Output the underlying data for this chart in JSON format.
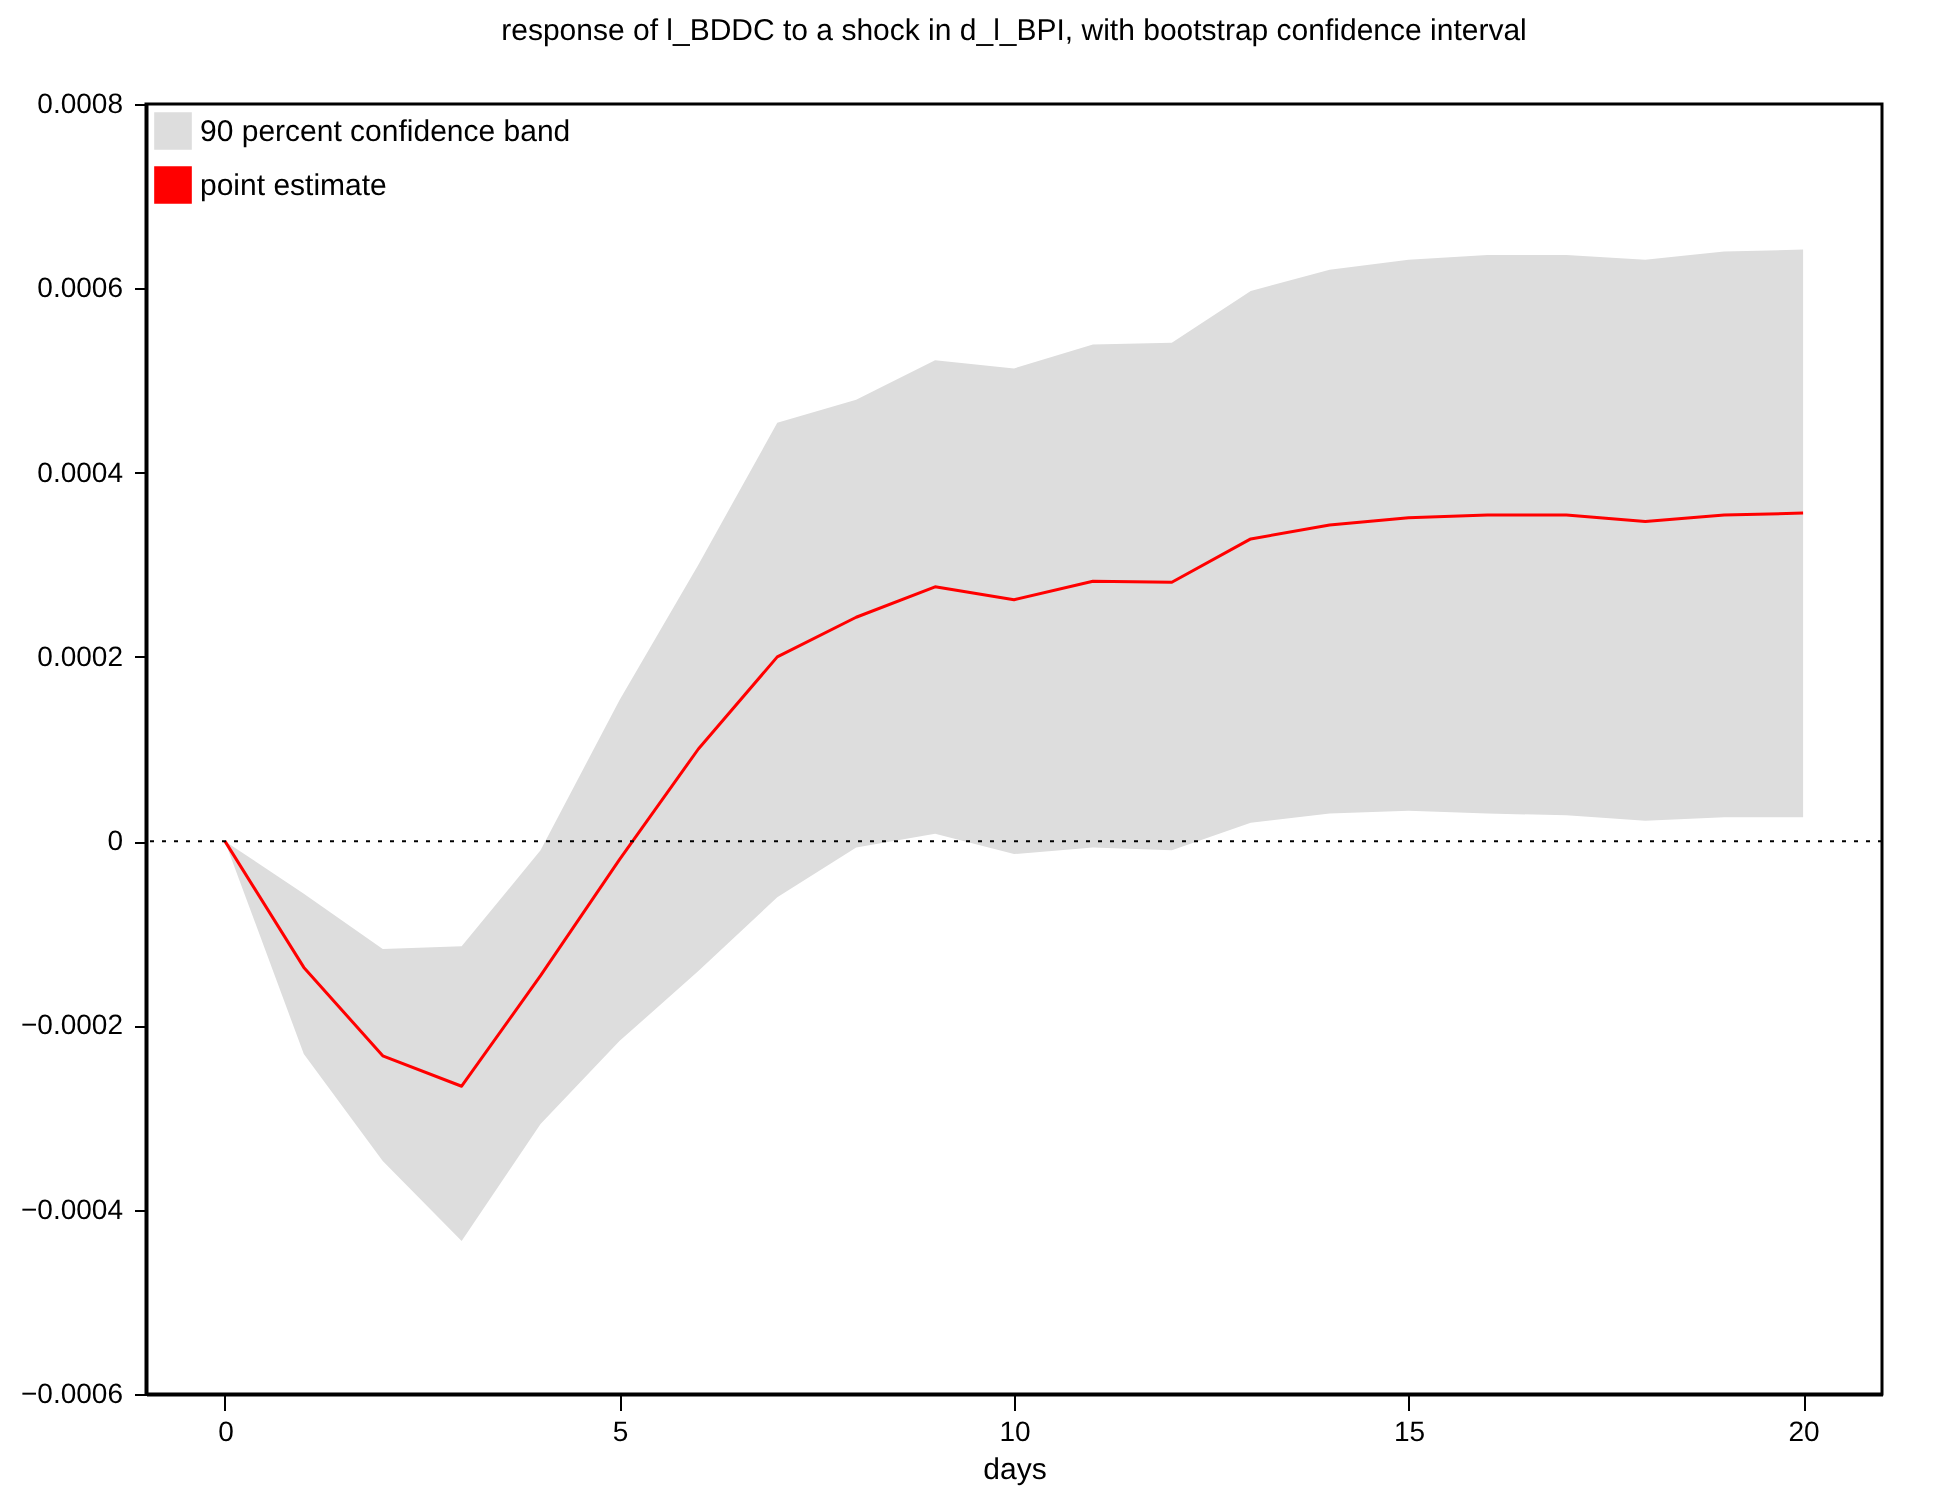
{
  "chart_data": {
    "type": "line",
    "title": "response of l_BDDC to a shock in d_l_BPI, with bootstrap confidence interval",
    "xlabel": "days",
    "x": [
      0,
      1,
      2,
      3,
      4,
      5,
      6,
      7,
      8,
      9,
      10,
      11,
      12,
      13,
      14,
      15,
      16,
      17,
      18,
      19,
      20
    ],
    "series": [
      {
        "name": "point estimate",
        "color": "#ff0000",
        "values": [
          0,
          -0.000137,
          -0.000233,
          -0.000266,
          -0.000146,
          -2e-05,
          0.0001,
          0.0002,
          0.000243,
          0.000276,
          0.000262,
          0.000282,
          0.000281,
          0.000328,
          0.000343,
          0.000351,
          0.000354,
          0.000354,
          0.000347,
          0.000354,
          0.000356
        ],
        "lower": [
          0,
          -0.000231,
          -0.000347,
          -0.000434,
          -0.000307,
          -0.000217,
          -0.000141,
          -6.1e-05,
          -7e-06,
          8e-06,
          -1.4e-05,
          -7e-06,
          -1e-05,
          2e-05,
          3e-05,
          3.3e-05,
          3e-05,
          2.8e-05,
          2.2e-05,
          2.6e-05,
          2.6e-05
        ],
        "upper": [
          0,
          -5.7e-05,
          -0.000117,
          -0.000114,
          -1e-05,
          0.000153,
          0.0003,
          0.000454,
          0.000479,
          0.000522,
          0.000513,
          0.000539,
          0.000541,
          0.000597,
          0.00062,
          0.000631,
          0.000636,
          0.000636,
          0.000631,
          0.00064,
          0.000642
        ]
      }
    ],
    "annotations": [
      "90 percent confidence band"
    ],
    "xlim": [
      -1,
      21
    ],
    "xticks": [
      0,
      5,
      10,
      15,
      20
    ],
    "ylim": [
      -0.0006,
      0.0008
    ],
    "yticks": [
      -0.0006,
      -0.0004,
      -0.0002,
      0,
      0.0002,
      0.0004,
      0.0006,
      0.0008
    ],
    "ref_lines": [
      {
        "axis": "y",
        "value": 0,
        "color": "#000000",
        "line_style": "dotted"
      }
    ],
    "grid": false,
    "legend": "top left",
    "marker": "none",
    "line_style": "solid"
  }
}
